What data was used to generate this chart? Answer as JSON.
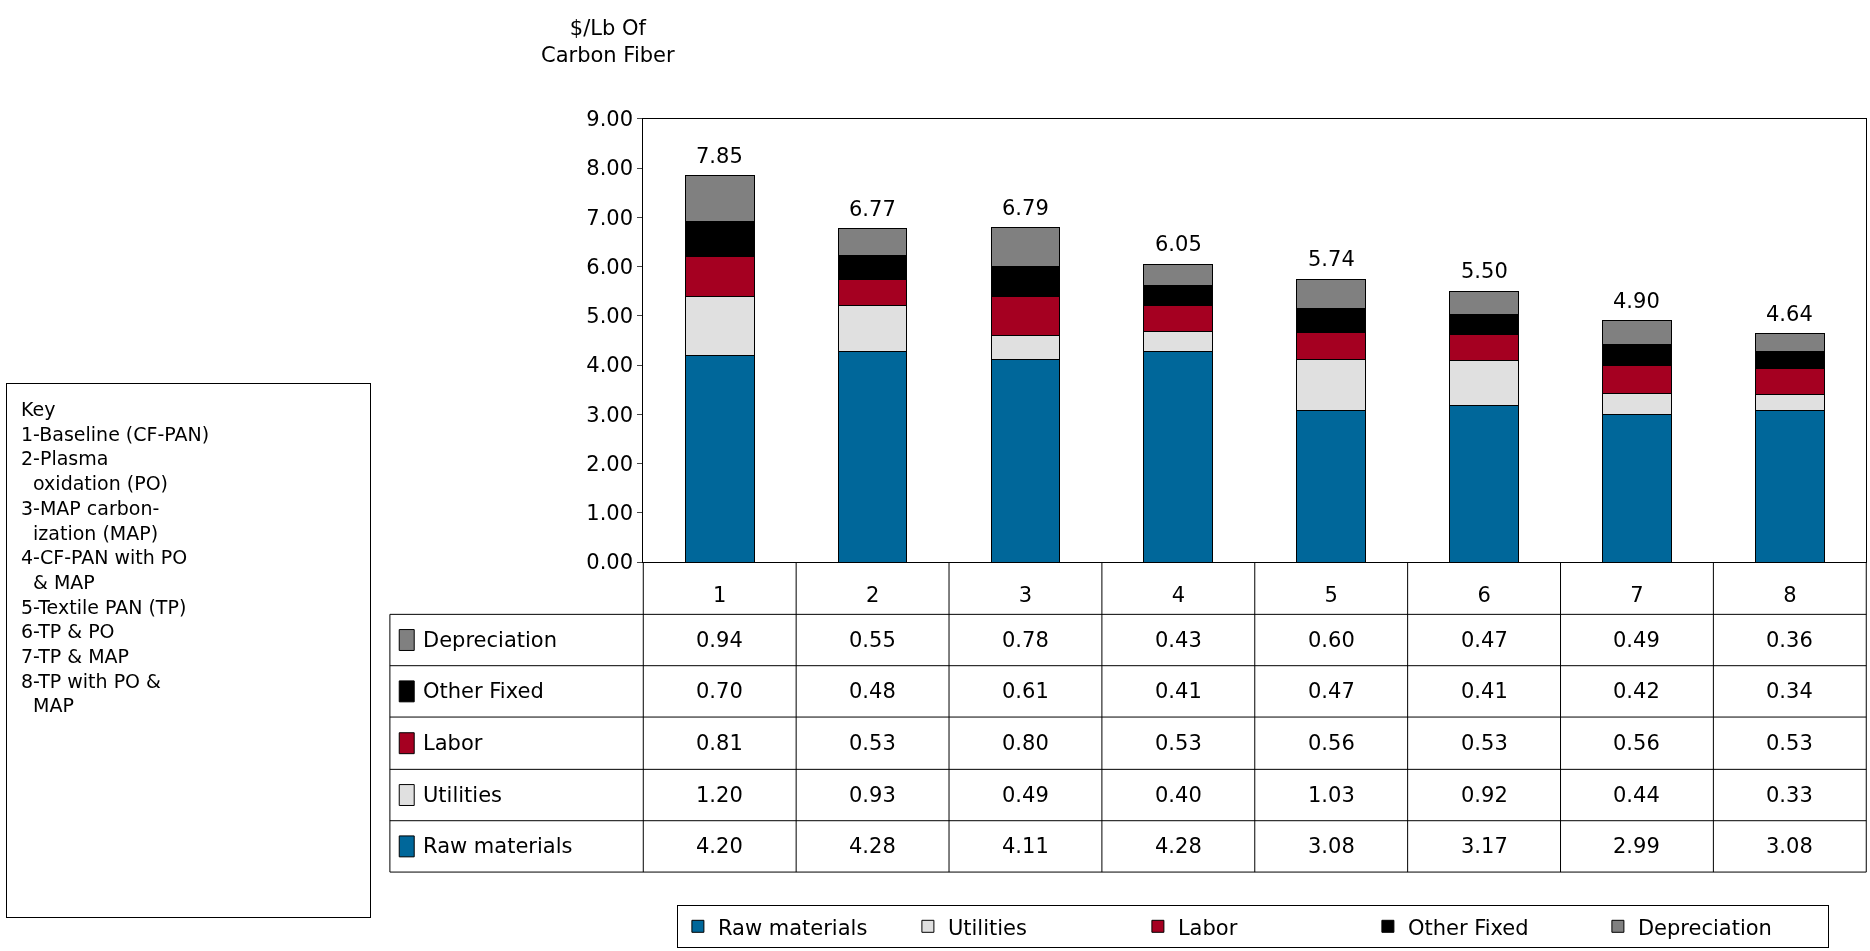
{
  "chart_data": {
    "type": "bar",
    "stacked": true,
    "ylabel": "$/Lb Of\nCarbon Fiber",
    "categories": [
      "1",
      "2",
      "3",
      "4",
      "5",
      "6",
      "7",
      "8"
    ],
    "series": [
      {
        "name": "Raw materials",
        "color": "#00679a",
        "values": [
          4.2,
          4.28,
          4.11,
          4.28,
          3.08,
          3.17,
          2.99,
          3.08
        ],
        "value_labels": [
          "4.20",
          "4.28",
          "4.11",
          "4.28",
          "3.08",
          "3.17",
          "2.99",
          "3.08"
        ]
      },
      {
        "name": "Utilities",
        "color": "#e0e0e0",
        "values": [
          1.2,
          0.93,
          0.49,
          0.4,
          1.03,
          0.92,
          0.44,
          0.33
        ],
        "value_labels": [
          "1.20",
          "0.93",
          "0.49",
          "0.40",
          "1.03",
          "0.92",
          "0.44",
          "0.33"
        ]
      },
      {
        "name": "Labor",
        "color": "#a50021",
        "values": [
          0.81,
          0.53,
          0.8,
          0.53,
          0.56,
          0.53,
          0.56,
          0.53
        ],
        "value_labels": [
          "0.81",
          "0.53",
          "0.80",
          "0.53",
          "0.56",
          "0.53",
          "0.56",
          "0.53"
        ]
      },
      {
        "name": "Other Fixed",
        "color": "#000000",
        "values": [
          0.7,
          0.48,
          0.61,
          0.41,
          0.47,
          0.41,
          0.42,
          0.34
        ],
        "value_labels": [
          "0.70",
          "0.48",
          "0.61",
          "0.41",
          "0.47",
          "0.41",
          "0.42",
          "0.34"
        ]
      },
      {
        "name": "Depreciation",
        "color": "#808080",
        "values": [
          0.94,
          0.55,
          0.78,
          0.43,
          0.6,
          0.47,
          0.49,
          0.36
        ],
        "value_labels": [
          "0.94",
          "0.55",
          "0.78",
          "0.43",
          "0.60",
          "0.47",
          "0.49",
          "0.36"
        ]
      }
    ],
    "totals": [
      "7.85",
      "6.77",
      "6.79",
      "6.05",
      "5.74",
      "5.50",
      "4.90",
      "4.64"
    ],
    "ylim": [
      0,
      9
    ],
    "yticks": [
      {
        "value": 0,
        "label": "0.00"
      },
      {
        "value": 1,
        "label": "1.00"
      },
      {
        "value": 2,
        "label": "2.00"
      },
      {
        "value": 3,
        "label": "3.00"
      },
      {
        "value": 4,
        "label": "4.00"
      },
      {
        "value": 5,
        "label": "5.00"
      },
      {
        "value": 6,
        "label": "6.00"
      },
      {
        "value": 7,
        "label": "7.00"
      },
      {
        "value": 8,
        "label": "8.00"
      },
      {
        "value": 9,
        "label": "9.00"
      }
    ],
    "annotations": [
      "Key\n1-Baseline (CF-PAN)\n2-Plasma\n  oxidation (PO)\n3-MAP carbon-\n  ization (MAP)\n4-CF-PAN with PO\n  & MAP\n5-Textile PAN (TP)\n6-TP & PO\n7-TP & MAP\n8-TP with PO &\n  MAP"
    ],
    "legend": "bottom",
    "grid": false
  }
}
